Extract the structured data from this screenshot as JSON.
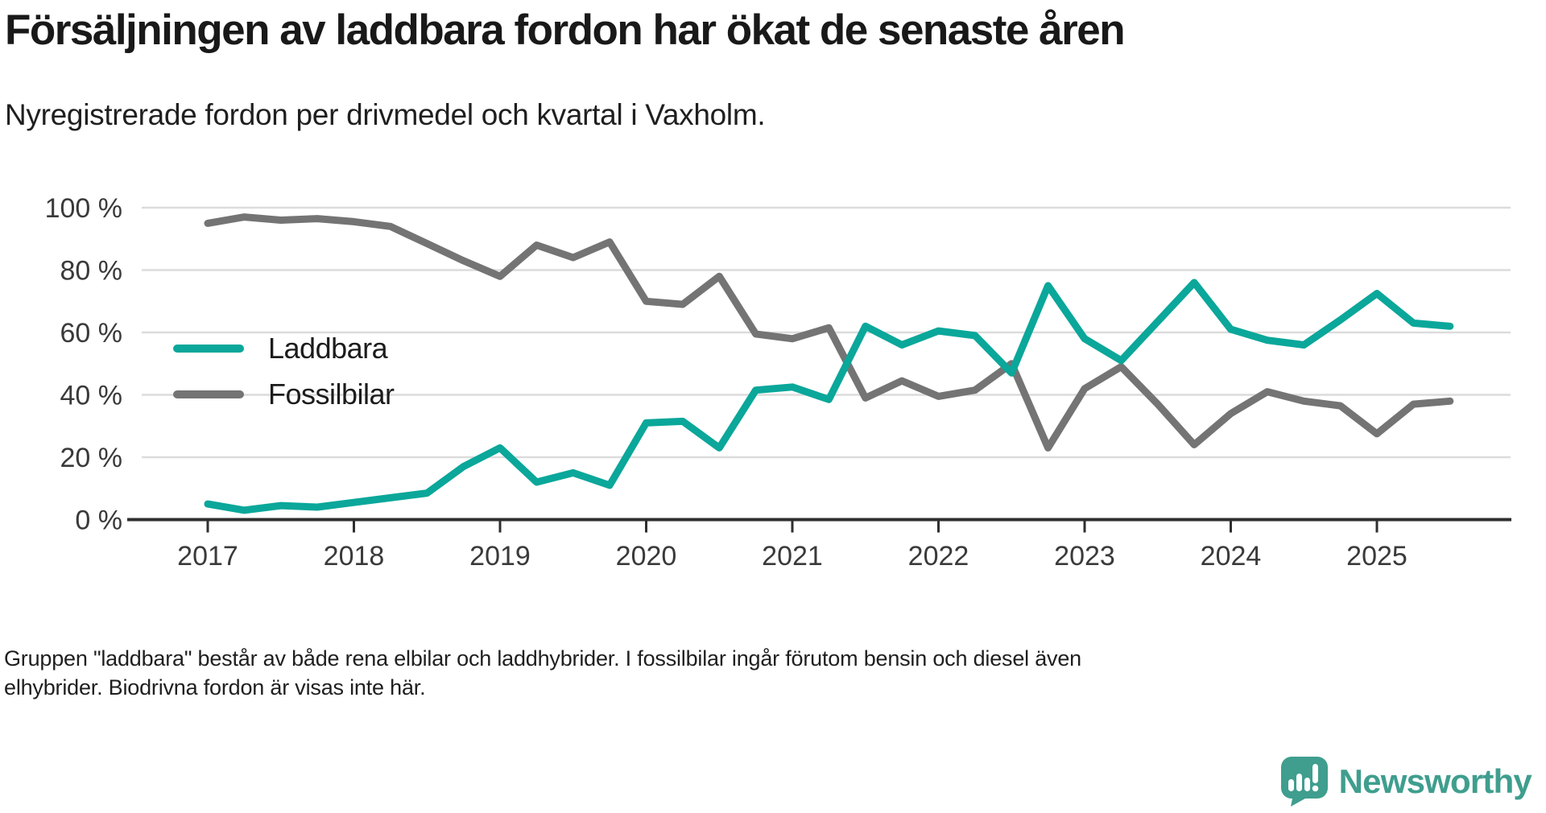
{
  "title": "Försäljningen av laddbara fordon har ökat de senaste åren",
  "subtitle": "Nyregistrerade fordon per drivmedel och kvartal i Vaxholm.",
  "footer": {
    "line1": "Gruppen \"laddbara\" består av både rena elbilar och laddhybrider. I fossilbilar ingår förutom bensin och diesel även",
    "line2": "elhybrider. Biodrivna fordon är visas inte här."
  },
  "legend": {
    "items": [
      {
        "label": "Laddbara",
        "color": "#0aa79a"
      },
      {
        "label": "Fossilbilar",
        "color": "#747474"
      }
    ]
  },
  "colors": {
    "accent_teal": "#0aa79a",
    "series_gray": "#747474",
    "gridline": "#dcdcdc",
    "axis": "#2f2f2f",
    "tick_label": "#3a3a3a",
    "logo_teal": "#3f9e8e"
  },
  "logo": {
    "text": "Newsworthy",
    "icon": "bar-chart-speech-bubble-icon"
  },
  "chart_data": {
    "type": "line",
    "title": "Försäljningen av laddbara fordon har ökat de senaste åren",
    "subtitle": "Nyregistrerade fordon per drivmedel och kvartal i Vaxholm.",
    "x": [
      "2017K1",
      "2017K2",
      "2017K3",
      "2017K4",
      "2018K1",
      "2018K2",
      "2018K3",
      "2018K4",
      "2019K1",
      "2019K2",
      "2019K3",
      "2019K4",
      "2020K1",
      "2020K2",
      "2020K3",
      "2020K4",
      "2021K1",
      "2021K2",
      "2021K3",
      "2021K4",
      "2022K1",
      "2022K2",
      "2022K3",
      "2022K4",
      "2023K1",
      "2023K2",
      "2023K3",
      "2023K4",
      "2024K1",
      "2024K2",
      "2024K3",
      "2024K4",
      "2025K1",
      "2025K2",
      "2025K3"
    ],
    "x_tick_labels": [
      "2017",
      "2018",
      "2019",
      "2020",
      "2021",
      "2022",
      "2023",
      "2024",
      "2025"
    ],
    "y_tick_labels": [
      "0 %",
      "20 %",
      "40 %",
      "60 %",
      "80 %",
      "100 %"
    ],
    "y_tick_values": [
      0,
      20,
      40,
      60,
      80,
      100
    ],
    "ylim": [
      0,
      100
    ],
    "unit": "%",
    "grid": true,
    "legend_position": "inside-left",
    "series": [
      {
        "name": "Laddbara",
        "color": "#0aa79a",
        "values": [
          5,
          3,
          4.5,
          4,
          5.5,
          7,
          8.5,
          17,
          23,
          12,
          15,
          11,
          31,
          31.5,
          23,
          41.5,
          42.5,
          38.5,
          62,
          56,
          60.5,
          59,
          47,
          75,
          58,
          51,
          63.5,
          76,
          61,
          57.5,
          56,
          64,
          72.5,
          63,
          62
        ]
      },
      {
        "name": "Fossilbilar",
        "color": "#747474",
        "values": [
          95,
          97,
          96,
          96.5,
          95.5,
          94,
          88.5,
          83,
          78,
          88,
          84,
          89,
          70,
          69,
          78,
          59.5,
          58,
          61.5,
          39,
          44.5,
          39.5,
          41.5,
          50,
          23,
          42,
          49,
          37,
          24,
          34,
          41,
          38,
          36.5,
          27.5,
          37,
          38
        ]
      }
    ]
  }
}
